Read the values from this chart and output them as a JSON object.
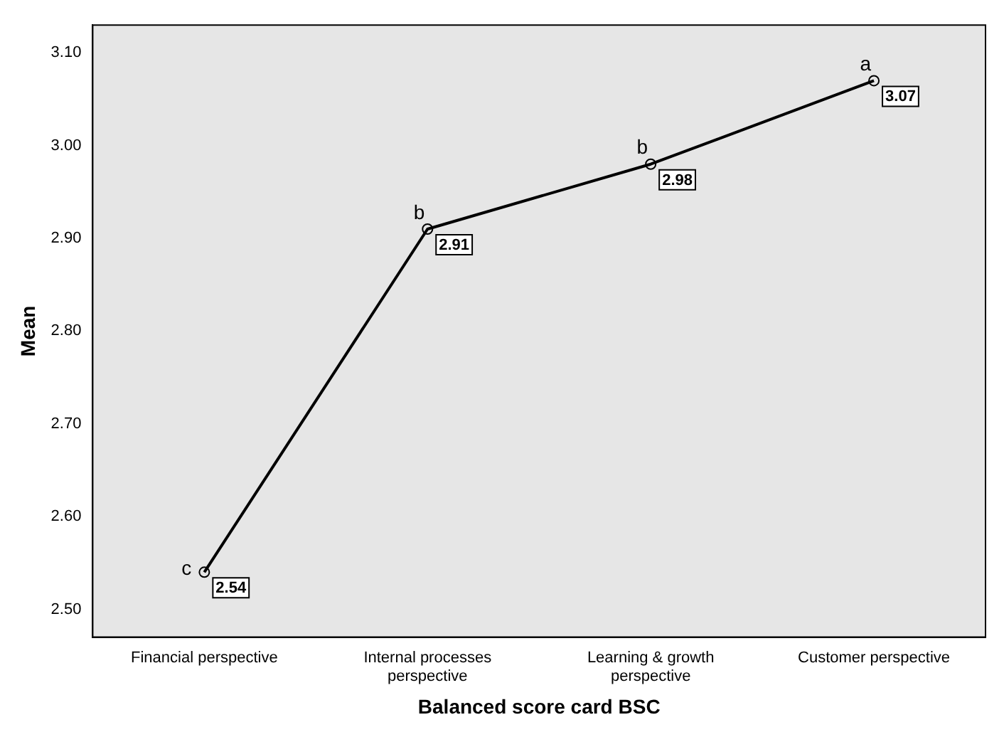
{
  "chart_data": {
    "type": "line",
    "xlabel": "Balanced score card BSC",
    "ylabel": "Mean",
    "categories": [
      "Financial perspective",
      "Internal processes perspective",
      "Learning & growth perspective",
      "Customer perspective"
    ],
    "series": [
      {
        "color": "#000000",
        "values": [
          2.54,
          2.91,
          2.98,
          3.07
        ]
      }
    ],
    "ylim": [
      2.47,
      3.13
    ],
    "yticks": [
      {
        "value": 2.5,
        "label": "2.50"
      },
      {
        "value": 2.6,
        "label": "2.60"
      },
      {
        "value": 2.7,
        "label": "2.70"
      },
      {
        "value": 2.8,
        "label": "2.80"
      },
      {
        "value": 2.9,
        "label": "2.90"
      },
      {
        "value": 3.0,
        "label": "3.00"
      },
      {
        "value": 3.1,
        "label": "3.10"
      }
    ],
    "data_labels": true,
    "grid": false,
    "legend": false,
    "marker": "circle",
    "line_style": "solid",
    "annotations": [
      {
        "text": "c",
        "x": "Financial perspective",
        "y": 2.54
      },
      {
        "text": "b",
        "x": "Internal processes perspective",
        "y": 2.91
      },
      {
        "text": "b",
        "x": "Learning & growth perspective",
        "y": 2.98
      },
      {
        "text": "a",
        "x": "Customer perspective",
        "y": 3.07
      }
    ]
  }
}
